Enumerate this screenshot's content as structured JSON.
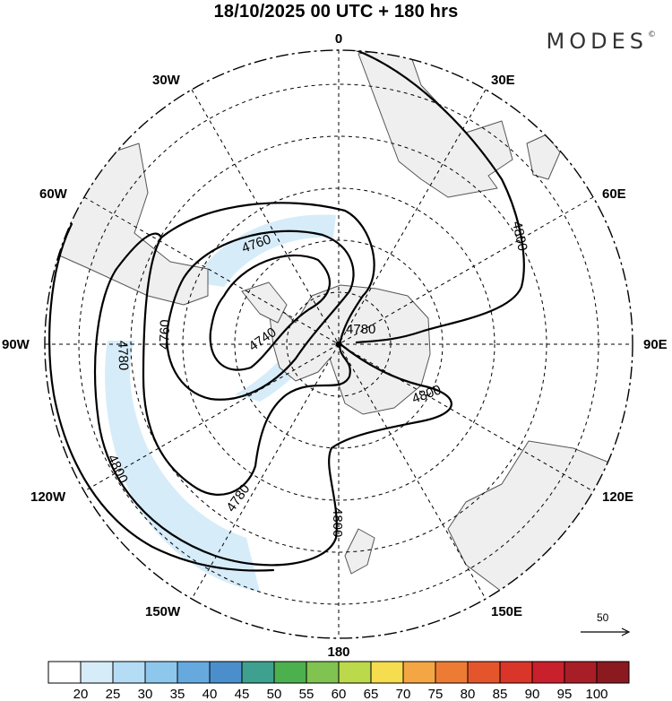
{
  "title": "18/10/2025  00 UTC  + 180 hrs",
  "brand": {
    "name": "MODES",
    "mark": "©"
  },
  "longitude_labels": {
    "n0": "0",
    "e30": "30E",
    "e60": "60E",
    "e90": "90E",
    "e120": "120E",
    "e150": "150E",
    "s180": "180",
    "w150": "150W",
    "w120": "120W",
    "w90": "90W",
    "w60": "60W",
    "w30": "30W"
  },
  "contour_labels": {
    "c4740": "4740",
    "c4760a": "4760",
    "c4760b": "4760",
    "c4780a": "4780",
    "c4780b": "4780",
    "c4780c": "4780",
    "c4800a": "4800",
    "c4800b": "4800",
    "c4800c": "4800",
    "c4800d": "4800"
  },
  "vector_scale": {
    "label": "50"
  },
  "colorbar": {
    "labels": [
      "20",
      "25",
      "30",
      "35",
      "40",
      "45",
      "50",
      "55",
      "60",
      "65",
      "70",
      "75",
      "80",
      "85",
      "90",
      "95",
      "100"
    ],
    "colors": [
      "#ffffff",
      "#d6ecf9",
      "#b4ddf5",
      "#8dc8ec",
      "#66a9de",
      "#4a8fcb",
      "#3ea18f",
      "#4db04f",
      "#80c350",
      "#bcd84b",
      "#f6dc4f",
      "#f3a643",
      "#ee7b33",
      "#e4552b",
      "#d93528",
      "#c8202c",
      "#a81e26",
      "#8a1a1f"
    ]
  }
}
